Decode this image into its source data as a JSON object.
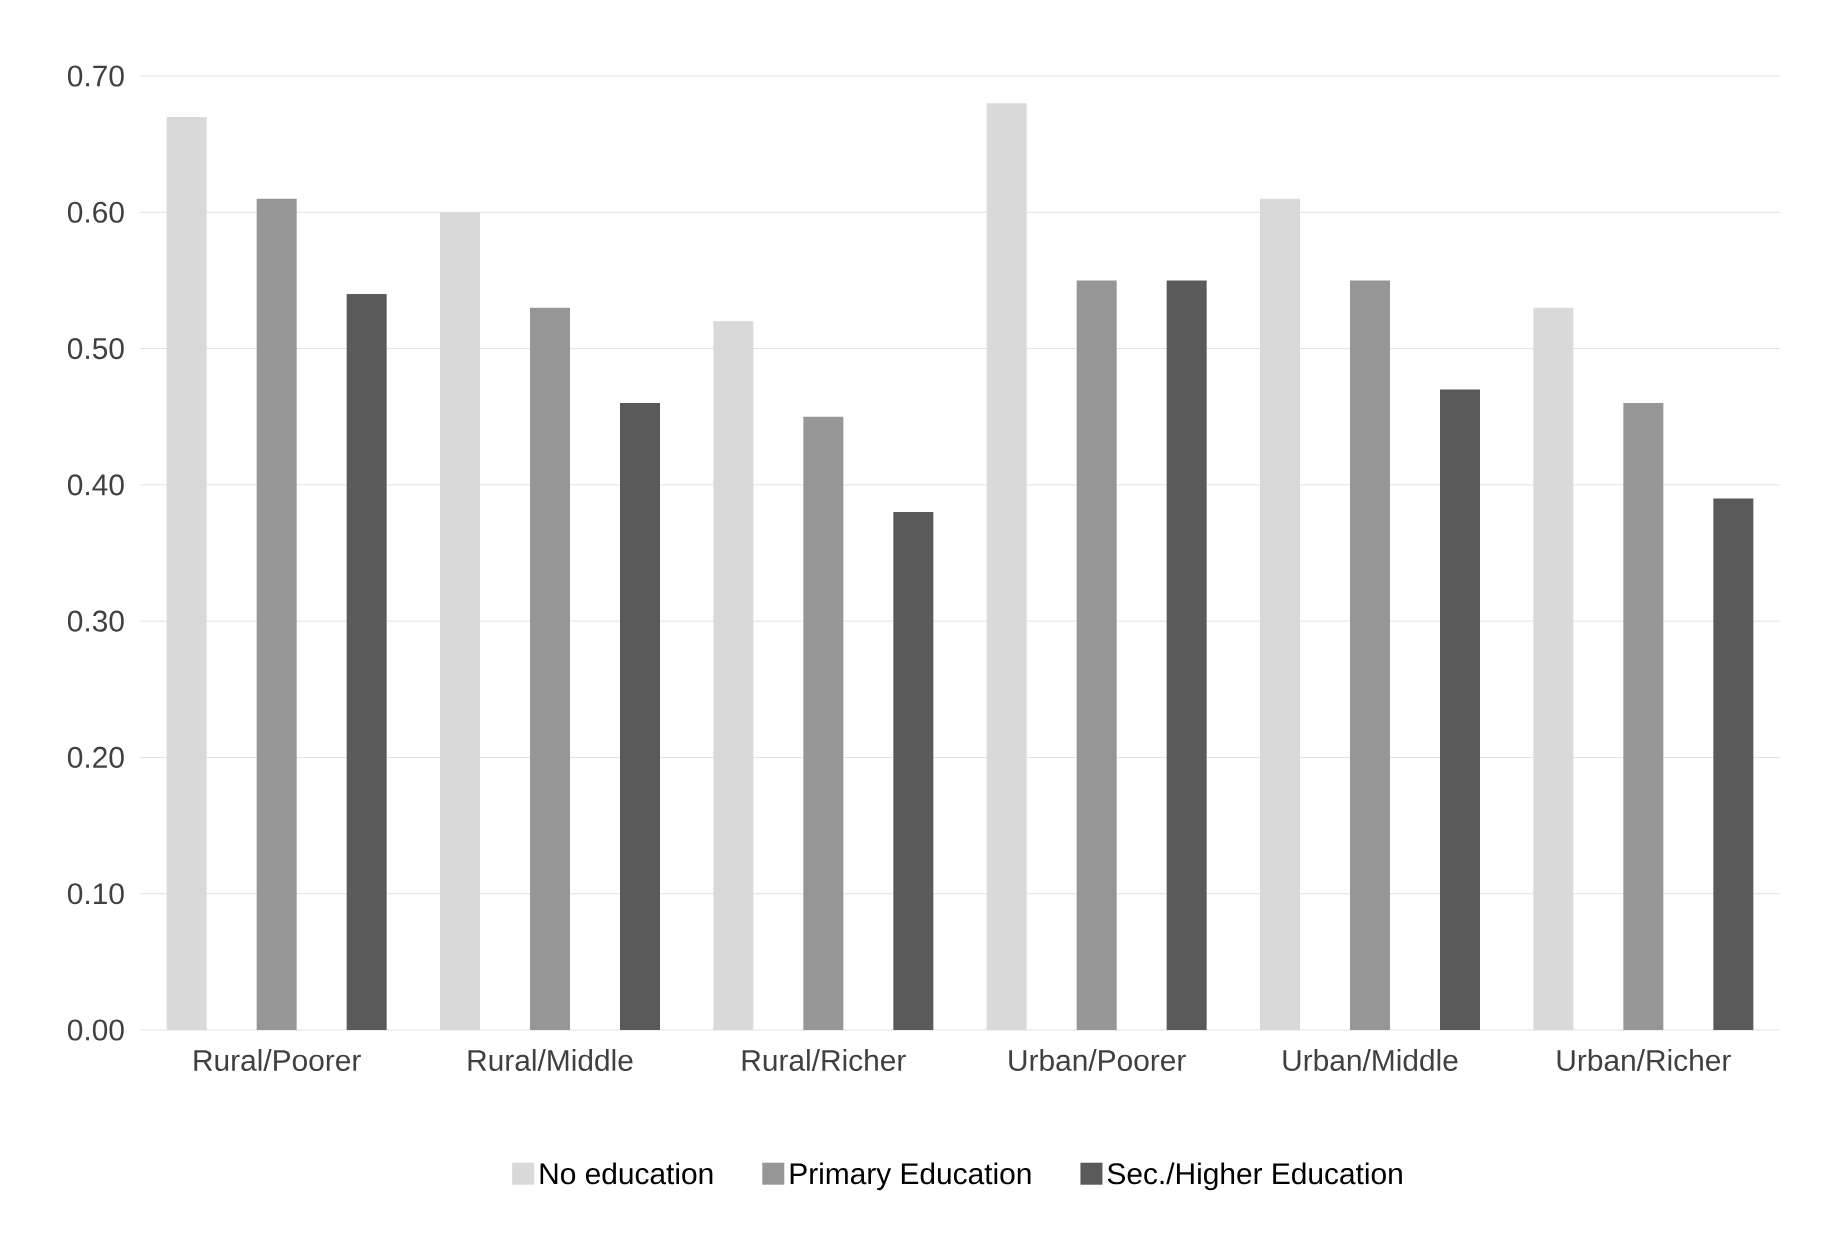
{
  "chart_data": {
    "type": "bar",
    "categories": [
      "Rural/Poorer",
      "Rural/Middle",
      "Rural/Richer",
      "Urban/Poorer",
      "Urban/Middle",
      "Urban/Richer"
    ],
    "series": [
      {
        "name": "No education",
        "color": "#d9d9d9",
        "values": [
          0.67,
          0.6,
          0.52,
          0.68,
          0.61,
          0.53
        ]
      },
      {
        "name": "Primary Education",
        "color": "#969696",
        "values": [
          0.61,
          0.53,
          0.45,
          0.55,
          0.55,
          0.46
        ]
      },
      {
        "name": "Sec./Higher Education",
        "color": "#5a5a5a",
        "values": [
          0.54,
          0.46,
          0.38,
          0.55,
          0.47,
          0.39
        ]
      }
    ],
    "ylim": [
      0,
      0.7
    ],
    "yticks": [
      {
        "value": 0,
        "label": "0.00"
      },
      {
        "value": 0.1,
        "label": "0.10"
      },
      {
        "value": 0.2,
        "label": "0.20"
      },
      {
        "value": 0.3,
        "label": "0.30"
      },
      {
        "value": 0.4,
        "label": "0.40"
      },
      {
        "value": 0.5,
        "label": "0.50"
      },
      {
        "value": 0.6,
        "label": "0.60"
      },
      {
        "value": 0.7,
        "label": "0.70"
      }
    ],
    "grid": "y",
    "legend": "bottom"
  }
}
